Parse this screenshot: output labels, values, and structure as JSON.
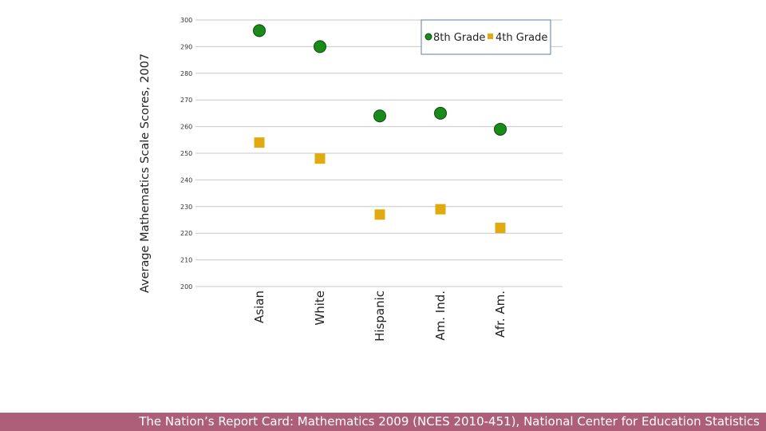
{
  "chart_data": {
    "type": "scatter",
    "title": "",
    "xlabel": "",
    "ylabel": "Average Mathematics Scale Scores, 2007",
    "ylim": [
      200,
      300
    ],
    "yticks": [
      200,
      210,
      220,
      230,
      240,
      250,
      260,
      270,
      280,
      290,
      300
    ],
    "grid": true,
    "legend_position": "top-right",
    "categories": [
      "Asian",
      "White",
      "Hispanic",
      "Am. Ind.",
      "Afr. Am."
    ],
    "series": [
      {
        "name": "8th Grade",
        "marker": "circle",
        "color": "#1a8a1a",
        "values": [
          296,
          290,
          264,
          265,
          259
        ]
      },
      {
        "name": "4th Grade",
        "marker": "square",
        "color": "#e0aa10",
        "values": [
          254,
          248,
          227,
          229,
          222
        ]
      }
    ]
  },
  "footer": {
    "source": "The Nation’s Report Card: Mathematics 2009 (NCES 2010-451), National Center for Education Statistics"
  }
}
